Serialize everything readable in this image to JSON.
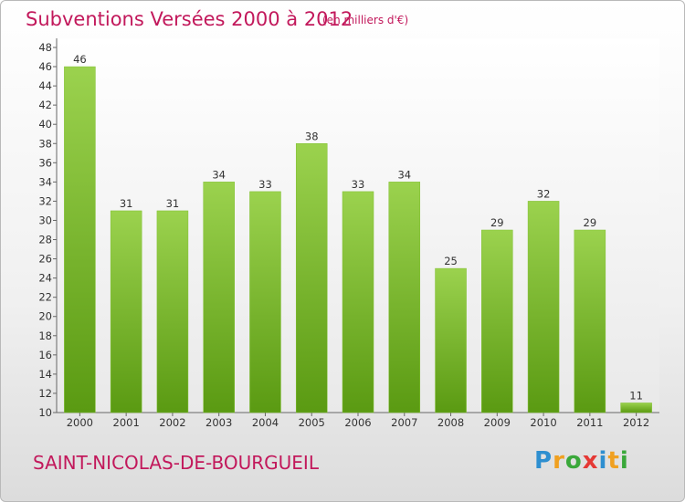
{
  "header": {
    "title": "Subventions Versées 2000 à 2012",
    "subtitle": "(en milliers d'€)"
  },
  "footer": {
    "commune": "SAINT-NICOLAS-DE-BOURGUEIL",
    "logo_letters": [
      "P",
      "r",
      "o",
      "x",
      "i",
      "t",
      "i"
    ],
    "logo_colors": [
      "#2e8fd0",
      "#f0a020",
      "#3aa83a",
      "#e53935",
      "#2e8fd0",
      "#f0a020",
      "#3aa83a"
    ]
  },
  "colors": {
    "bar_top": "#9bd24e",
    "bar_bottom": "#5a9a12",
    "accent": "#c2185b"
  },
  "chart_data": {
    "type": "bar",
    "title": "Subventions Versées 2000 à 2012",
    "subtitle": "(en milliers d'€)",
    "categories": [
      "2000",
      "2001",
      "2002",
      "2003",
      "2004",
      "2005",
      "2006",
      "2007",
      "2008",
      "2009",
      "2010",
      "2011",
      "2012"
    ],
    "values": [
      46,
      31,
      31,
      34,
      33,
      38,
      33,
      34,
      25,
      29,
      32,
      29,
      11
    ],
    "ylim": [
      10,
      48
    ],
    "yticks": [
      10,
      12,
      14,
      16,
      18,
      20,
      22,
      24,
      26,
      28,
      30,
      32,
      34,
      36,
      38,
      40,
      42,
      44,
      46,
      48
    ],
    "grid": false,
    "legend": "none"
  }
}
